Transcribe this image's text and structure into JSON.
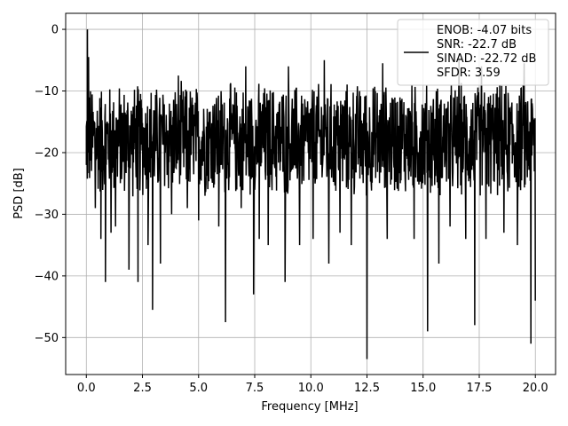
{
  "chart_data": {
    "type": "line",
    "xlabel": "Frequency [MHz]",
    "ylabel": "PSD [dB]",
    "xlim": [
      -0.92,
      20.9
    ],
    "ylim": [
      -56,
      2.6
    ],
    "xticks": [
      0.0,
      2.5,
      5.0,
      7.5,
      10.0,
      12.5,
      15.0,
      17.5,
      20.0
    ],
    "xtick_labels": [
      "0.0",
      "2.5",
      "5.0",
      "7.5",
      "10.0",
      "12.5",
      "15.0",
      "17.5",
      "20.0"
    ],
    "yticks": [
      0,
      -10,
      -20,
      -30,
      -40,
      -50
    ],
    "ytick_labels": [
      "0",
      "−10",
      "−20",
      "−30",
      "−40",
      "−50"
    ],
    "grid": true,
    "legend_position": "top-right",
    "line_color": "#000000",
    "series": [
      {
        "legend_lines": [
          "ENOB: -4.07 bits",
          "SNR: -22.7 dB",
          "SINAD: -22.72 dB",
          "SFDR: 3.59"
        ],
        "x_range": [
          0,
          20
        ],
        "fundamental": {
          "x": 0.05,
          "y": 0
        },
        "noise_floor_mean": -18,
        "noise_floor_upper": -8,
        "noise_floor_lower": -28,
        "notable_dips": [
          {
            "x": 0.4,
            "y": -29
          },
          {
            "x": 0.65,
            "y": -34
          },
          {
            "x": 0.85,
            "y": -41
          },
          {
            "x": 1.1,
            "y": -33
          },
          {
            "x": 1.3,
            "y": -32
          },
          {
            "x": 1.9,
            "y": -39
          },
          {
            "x": 2.3,
            "y": -41
          },
          {
            "x": 2.75,
            "y": -35
          },
          {
            "x": 2.95,
            "y": -45.5
          },
          {
            "x": 3.3,
            "y": -38
          },
          {
            "x": 3.8,
            "y": -30
          },
          {
            "x": 4.5,
            "y": -29
          },
          {
            "x": 5.0,
            "y": -31
          },
          {
            "x": 5.9,
            "y": -32
          },
          {
            "x": 6.2,
            "y": -47.5
          },
          {
            "x": 6.9,
            "y": -29
          },
          {
            "x": 7.45,
            "y": -43
          },
          {
            "x": 7.7,
            "y": -34
          },
          {
            "x": 8.1,
            "y": -35
          },
          {
            "x": 8.85,
            "y": -41
          },
          {
            "x": 9.5,
            "y": -35
          },
          {
            "x": 10.1,
            "y": -34
          },
          {
            "x": 10.8,
            "y": -38
          },
          {
            "x": 11.3,
            "y": -33
          },
          {
            "x": 11.8,
            "y": -35
          },
          {
            "x": 12.5,
            "y": -53.5
          },
          {
            "x": 13.4,
            "y": -34
          },
          {
            "x": 14.6,
            "y": -34
          },
          {
            "x": 15.2,
            "y": -49
          },
          {
            "x": 15.7,
            "y": -38
          },
          {
            "x": 16.2,
            "y": -32
          },
          {
            "x": 16.9,
            "y": -34
          },
          {
            "x": 17.3,
            "y": -48
          },
          {
            "x": 17.8,
            "y": -34
          },
          {
            "x": 18.6,
            "y": -33
          },
          {
            "x": 19.2,
            "y": -35
          },
          {
            "x": 19.8,
            "y": -51
          },
          {
            "x": 20.0,
            "y": -44
          }
        ],
        "notable_peaks": [
          {
            "x": 0.1,
            "y": -4.5
          },
          {
            "x": 4.1,
            "y": -7.5
          },
          {
            "x": 7.1,
            "y": -6
          },
          {
            "x": 9.0,
            "y": -6
          },
          {
            "x": 10.6,
            "y": -5
          },
          {
            "x": 13.2,
            "y": -5.5
          },
          {
            "x": 16.6,
            "y": -5
          },
          {
            "x": 17.6,
            "y": -6
          },
          {
            "x": 19.5,
            "y": -5.5
          }
        ]
      }
    ]
  }
}
